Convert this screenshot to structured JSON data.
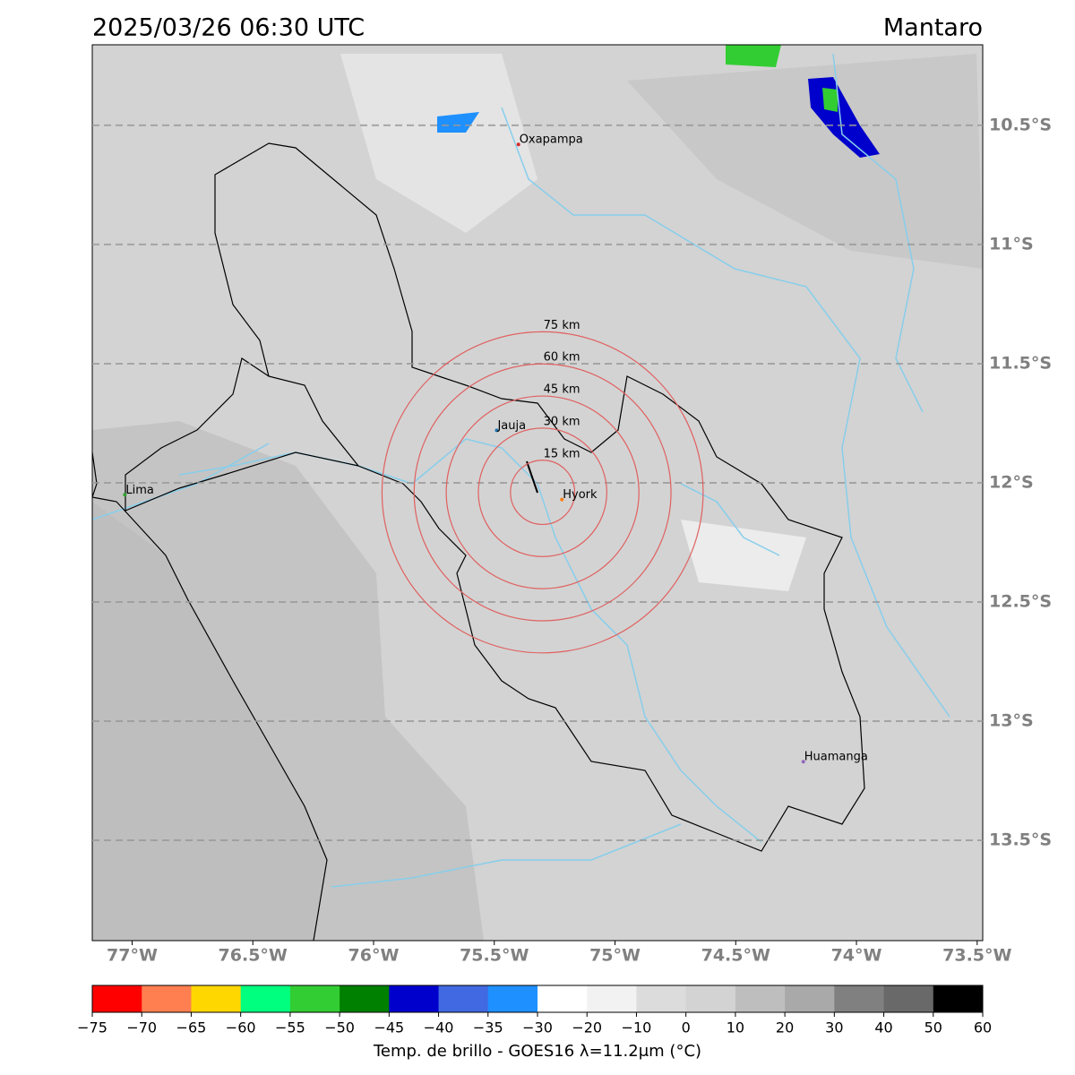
{
  "title": "2025/03/26 06:30 UTC",
  "region": "Mantaro",
  "map": {
    "xlim": [
      -77.165,
      -73.477
    ],
    "ylim": [
      -13.921,
      -10.162
    ],
    "xticks": [
      {
        "value": -77,
        "label": "77°W"
      },
      {
        "value": -76.5,
        "label": "76.5°W"
      },
      {
        "value": -76,
        "label": "76°W"
      },
      {
        "value": -75.5,
        "label": "75.5°W"
      },
      {
        "value": -75,
        "label": "75°W"
      },
      {
        "value": -74.5,
        "label": "74.5°W"
      },
      {
        "value": -74,
        "label": "74°W"
      },
      {
        "value": -73.5,
        "label": "73.5°W"
      }
    ],
    "yticks": [
      {
        "value": -10.5,
        "label": "10.5°S"
      },
      {
        "value": -11,
        "label": "11°S"
      },
      {
        "value": -11.5,
        "label": "11.5°S"
      },
      {
        "value": -12,
        "label": "12°S"
      },
      {
        "value": -12.5,
        "label": "12.5°S"
      },
      {
        "value": -13,
        "label": "13°S"
      },
      {
        "value": -13.5,
        "label": "13.5°S"
      }
    ],
    "grid": true,
    "cities": [
      {
        "name": "Oxapampa",
        "lon": -75.4,
        "lat": -10.58,
        "color": "#d62728"
      },
      {
        "name": "Jauja",
        "lon": -75.49,
        "lat": -11.78,
        "color": "#1f77b4"
      },
      {
        "name": "Hyork",
        "lon": -75.22,
        "lat": -12.07,
        "color": "#ff7f0e"
      },
      {
        "name": "Lima",
        "lon": -77.03,
        "lat": -12.05,
        "color": "#2ca02c"
      },
      {
        "name": "Huamanga",
        "lon": -74.22,
        "lat": -13.17,
        "color": "#9467bd"
      }
    ],
    "ring_center": {
      "lon": -75.3,
      "lat": -12.04
    },
    "ring_color": "#e06060",
    "rings": [
      {
        "value": 15,
        "label": "15 km"
      },
      {
        "value": 30,
        "label": "30 km"
      },
      {
        "value": 45,
        "label": "45 km"
      },
      {
        "value": 60,
        "label": "60 km"
      },
      {
        "value": 75,
        "label": "75 km"
      }
    ]
  },
  "colorbar": {
    "label": "Temp. de brillo - GOES16 λ=11.2μm (°C)",
    "ticks": [
      {
        "value": -75,
        "label": "−75"
      },
      {
        "value": -70,
        "label": "−70"
      },
      {
        "value": -65,
        "label": "−65"
      },
      {
        "value": -60,
        "label": "−60"
      },
      {
        "value": -55,
        "label": "−55"
      },
      {
        "value": -50,
        "label": "−50"
      },
      {
        "value": -45,
        "label": "−45"
      },
      {
        "value": -40,
        "label": "−40"
      },
      {
        "value": -35,
        "label": "−35"
      },
      {
        "value": -30,
        "label": "−30"
      },
      {
        "value": -20,
        "label": "−20"
      },
      {
        "value": -10,
        "label": "−10"
      },
      0,
      10,
      20,
      30,
      40,
      50,
      60
    ],
    "colors": [
      "#ff0000",
      "#ff7f50",
      "#ffd700",
      "#00ff7f",
      "#32cd32",
      "#008000",
      "#0000cd",
      "#4169e1",
      "#1e90ff",
      "#ffffff",
      "#f2f2f2",
      "#dcdcdc",
      "#d3d3d3",
      "#bebebe",
      "#a9a9a9",
      "#808080",
      "#696969",
      "#000000"
    ]
  }
}
